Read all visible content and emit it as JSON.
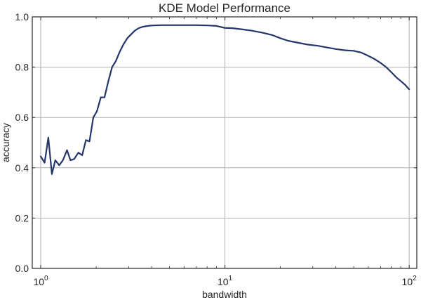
{
  "chart_data": {
    "type": "line",
    "title": "KDE Model Performance",
    "xlabel": "bandwidth",
    "ylabel": "accuracy",
    "x_scale": "log",
    "xlim": [
      0.9,
      110
    ],
    "ylim": [
      0,
      1.0
    ],
    "grid": true,
    "legend": "none",
    "x_ticks": [
      {
        "value": 1,
        "base": "10",
        "exp": "0"
      },
      {
        "value": 10,
        "base": "10",
        "exp": "1"
      },
      {
        "value": 100,
        "base": "10",
        "exp": "2"
      }
    ],
    "y_ticks": [
      {
        "value": 0.0,
        "label": "0.0"
      },
      {
        "value": 0.2,
        "label": "0.2"
      },
      {
        "value": 0.4,
        "label": "0.4"
      },
      {
        "value": 0.6,
        "label": "0.6"
      },
      {
        "value": 0.8,
        "label": "0.8"
      },
      {
        "value": 1.0,
        "label": "1.0"
      }
    ],
    "series": [
      {
        "color": "#24376b",
        "x": [
          1.0,
          1.05,
          1.1,
          1.15,
          1.2,
          1.26,
          1.32,
          1.39,
          1.45,
          1.52,
          1.6,
          1.68,
          1.76,
          1.84,
          1.93,
          2.02,
          2.12,
          2.22,
          2.33,
          2.44,
          2.56,
          2.68,
          2.81,
          2.95,
          3.09,
          3.24,
          3.4,
          3.56,
          3.73,
          3.91,
          4.1,
          4.5,
          5.0,
          6.0,
          7.0,
          8.0,
          9.0,
          10.0,
          11.0,
          12.5,
          14.0,
          16.0,
          18.0,
          20.0,
          22.0,
          25.0,
          28.0,
          32.0,
          36.0,
          40.0,
          45.0,
          50.0,
          55.0,
          60.0,
          65.0,
          70.0,
          75.0,
          80.0,
          85.0,
          90.0,
          95.0,
          100.0
        ],
        "values": [
          0.445,
          0.42,
          0.52,
          0.375,
          0.43,
          0.41,
          0.43,
          0.47,
          0.43,
          0.435,
          0.46,
          0.45,
          0.51,
          0.505,
          0.6,
          0.625,
          0.68,
          0.68,
          0.745,
          0.8,
          0.825,
          0.86,
          0.89,
          0.915,
          0.93,
          0.945,
          0.955,
          0.96,
          0.963,
          0.965,
          0.966,
          0.967,
          0.967,
          0.967,
          0.967,
          0.966,
          0.964,
          0.956,
          0.955,
          0.95,
          0.945,
          0.937,
          0.928,
          0.915,
          0.905,
          0.897,
          0.89,
          0.885,
          0.878,
          0.872,
          0.867,
          0.865,
          0.858,
          0.845,
          0.832,
          0.817,
          0.8,
          0.78,
          0.76,
          0.745,
          0.73,
          0.712
        ]
      }
    ]
  }
}
